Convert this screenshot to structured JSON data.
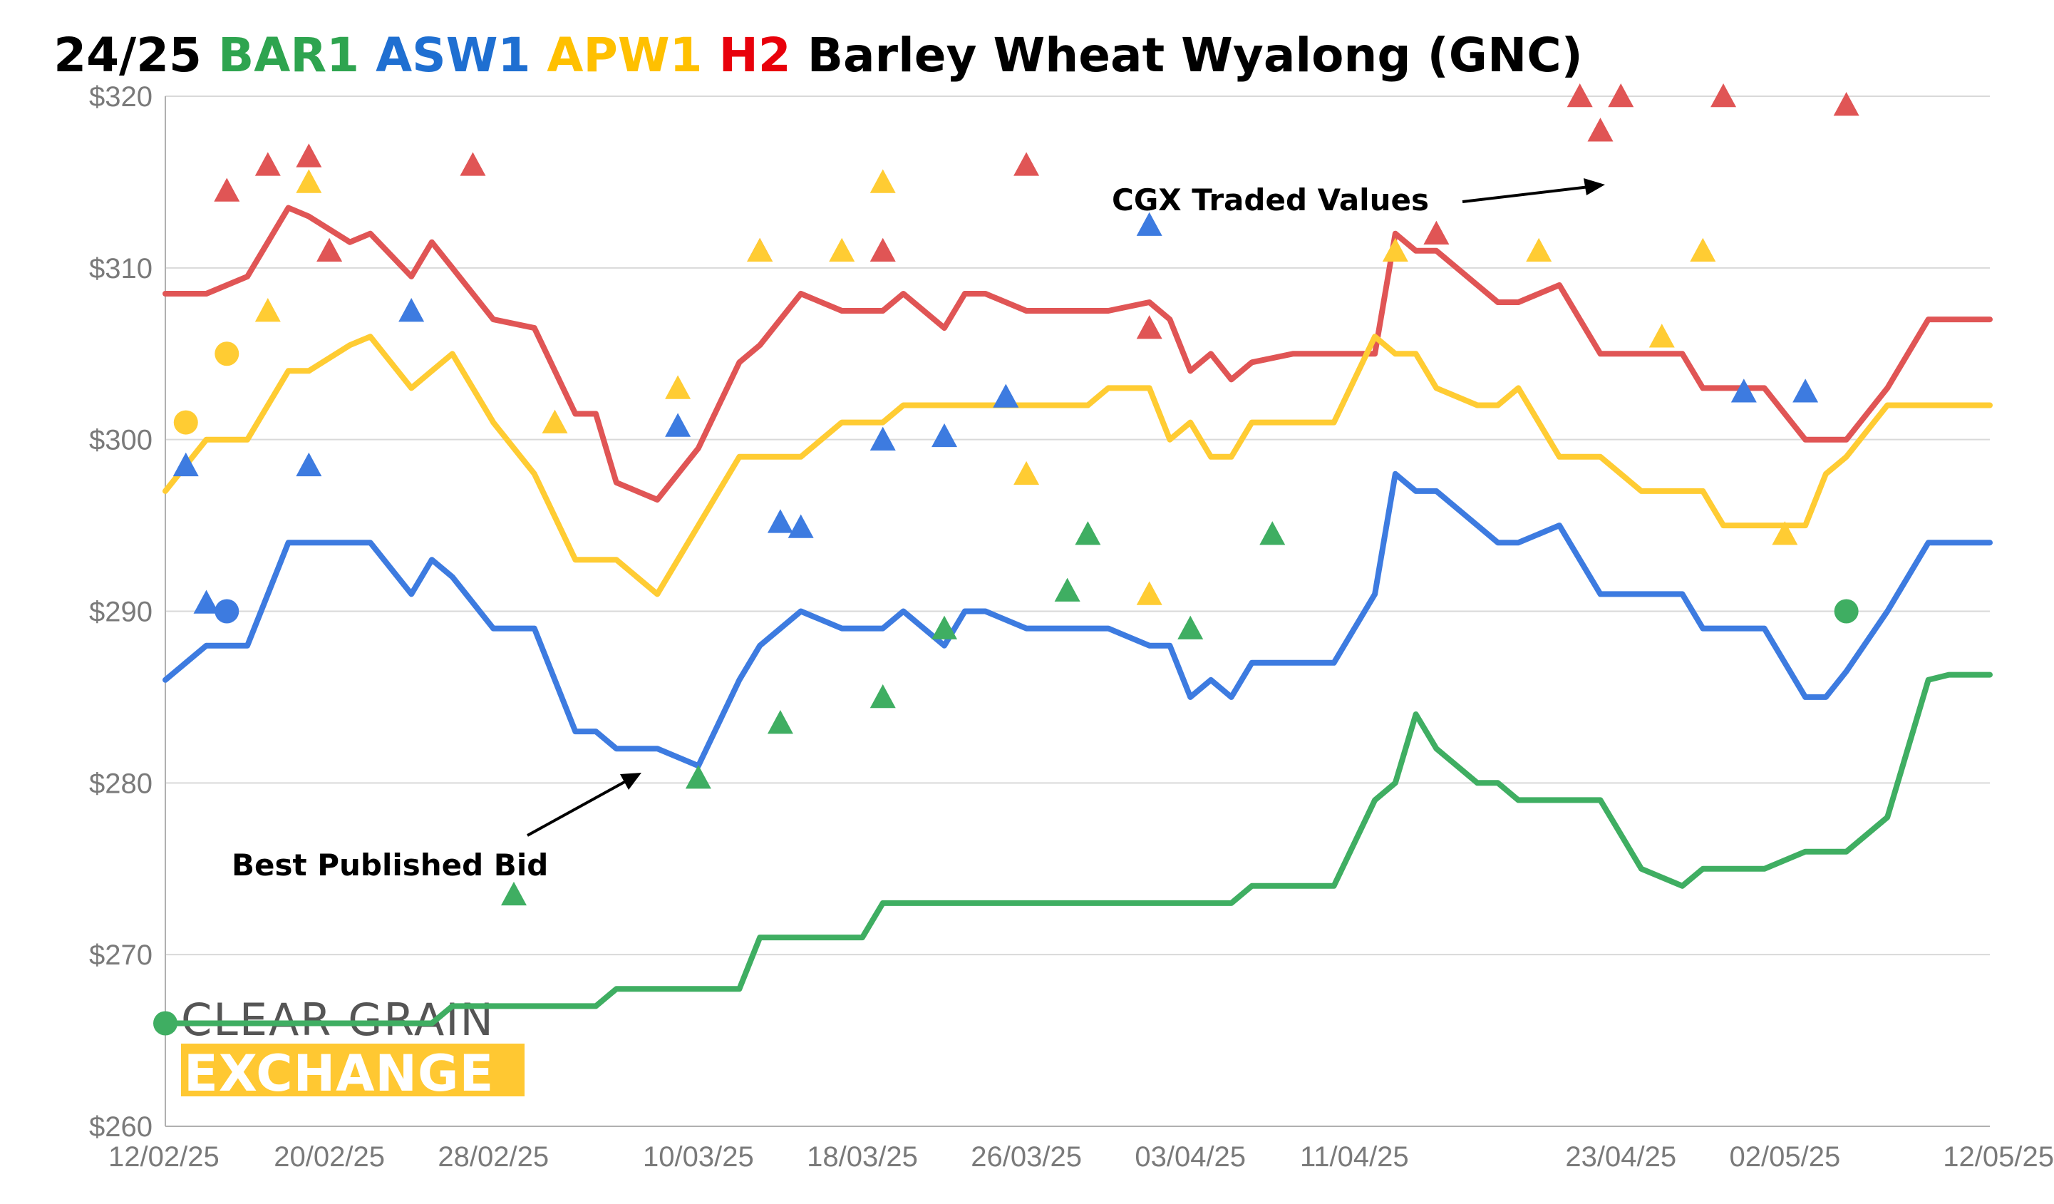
{
  "chart_data": {
    "type": "line",
    "title": {
      "parts": [
        {
          "text": "24/25 ",
          "color": "#000000"
        },
        {
          "text": "BAR1 ",
          "color": "#2ea44f"
        },
        {
          "text": "ASW1 ",
          "color": "#1f6fd1"
        },
        {
          "text": "APW1 ",
          "color": "#ffc000"
        },
        {
          "text": "H2 ",
          "color": "#e8000b"
        },
        {
          "text": "Barley Wheat Wyalong (GNC)",
          "color": "#000000"
        }
      ]
    },
    "xlabel": "",
    "ylabel": "",
    "ylim": [
      260,
      320
    ],
    "yticks": [
      260,
      270,
      280,
      290,
      300,
      310,
      320
    ],
    "ytick_labels": [
      "$260",
      "$270",
      "$280",
      "$290",
      "$300",
      "$310",
      "$320"
    ],
    "xlim": [
      0,
      89
    ],
    "xticks": [
      0,
      8,
      16,
      26,
      34,
      42,
      50,
      58,
      71,
      79,
      89
    ],
    "xtick_labels": [
      "12/02/25",
      "20/02/25",
      "28/02/25",
      "10/03/25",
      "18/03/25",
      "26/03/25",
      "03/04/25",
      "11/04/25",
      "23/04/25",
      "02/05/25",
      "12/05/25"
    ],
    "grid": "horizontal",
    "x_index_note": "x values are days since 12/02/25",
    "series": [
      {
        "name": "H2",
        "color": "#e05555",
        "x": [
          0,
          2,
          4,
          6,
          7,
          9,
          10,
          12,
          13,
          14,
          16,
          18,
          20,
          21,
          22,
          24,
          26,
          28,
          29,
          31,
          33,
          34,
          35,
          36,
          38,
          39,
          40,
          42,
          44,
          45,
          46,
          48,
          49,
          50,
          51,
          52,
          53,
          55,
          57,
          59,
          60,
          61,
          62,
          64,
          65,
          66,
          68,
          69,
          70,
          72,
          74,
          75,
          76,
          78,
          80,
          81,
          82,
          84,
          86,
          87,
          89
        ],
        "values": [
          308.5,
          308.5,
          309.5,
          313.5,
          313,
          311.5,
          312,
          309.5,
          311.5,
          310,
          307,
          306.5,
          301.5,
          301.5,
          297.5,
          296.5,
          299.5,
          304.5,
          305.5,
          308.5,
          307.5,
          307.5,
          307.5,
          308.5,
          306.5,
          308.5,
          308.5,
          307.5,
          307.5,
          307.5,
          307.5,
          308,
          307,
          304,
          305,
          303.5,
          304.5,
          305,
          305,
          305,
          312,
          311,
          311,
          309,
          308,
          308,
          309,
          307,
          305,
          305,
          305,
          303,
          303,
          303,
          300,
          300,
          300,
          303,
          307,
          307,
          307
        ]
      },
      {
        "name": "APW1",
        "color": "#ffcc33",
        "x": [
          0,
          2,
          4,
          6,
          7,
          9,
          10,
          12,
          13,
          14,
          16,
          18,
          20,
          21,
          22,
          24,
          26,
          28,
          29,
          31,
          33,
          34,
          35,
          36,
          38,
          39,
          40,
          42,
          44,
          45,
          46,
          48,
          49,
          50,
          51,
          52,
          53,
          55,
          57,
          59,
          60,
          61,
          62,
          64,
          65,
          66,
          68,
          69,
          70,
          72,
          74,
          75,
          76,
          78,
          80,
          81,
          82,
          84,
          86,
          87,
          89
        ],
        "values": [
          297,
          300,
          300,
          304,
          304,
          305.5,
          306,
          303,
          304,
          305,
          301,
          298,
          293,
          293,
          293,
          291,
          295,
          299,
          299,
          299,
          301,
          301,
          301,
          302,
          302,
          302,
          302,
          302,
          302,
          302,
          303,
          303,
          300,
          301,
          299,
          299,
          301,
          301,
          301,
          306,
          305,
          305,
          303,
          302,
          302,
          303,
          299,
          299,
          299,
          297,
          297,
          297,
          295,
          295,
          295,
          298,
          299,
          302,
          302,
          302,
          302
        ]
      },
      {
        "name": "ASW1",
        "color": "#3d7be0",
        "x": [
          0,
          2,
          4,
          6,
          7,
          9,
          10,
          12,
          13,
          14,
          16,
          18,
          20,
          21,
          22,
          24,
          26,
          28,
          29,
          31,
          33,
          34,
          35,
          36,
          38,
          39,
          40,
          42,
          44,
          45,
          46,
          48,
          49,
          50,
          51,
          52,
          53,
          55,
          57,
          59,
          60,
          61,
          62,
          64,
          65,
          66,
          68,
          69,
          70,
          72,
          74,
          75,
          76,
          78,
          80,
          81,
          82,
          84,
          86,
          87,
          89
        ],
        "values": [
          286,
          288,
          288,
          294,
          294,
          294,
          294,
          291,
          293,
          292,
          289,
          289,
          283,
          283,
          282,
          282,
          281,
          286,
          288,
          290,
          289,
          289,
          289,
          290,
          288,
          290,
          290,
          289,
          289,
          289,
          289,
          288,
          288,
          285,
          286,
          285,
          287,
          287,
          287,
          291,
          298,
          297,
          297,
          295,
          294,
          294,
          295,
          293,
          291,
          291,
          291,
          289,
          289,
          289,
          285,
          285,
          286.5,
          290,
          294,
          294,
          294
        ]
      },
      {
        "name": "BAR1",
        "color": "#3fae62",
        "x": [
          0,
          2,
          4,
          6,
          7,
          9,
          10,
          12,
          13,
          14,
          16,
          18,
          20,
          21,
          22,
          24,
          26,
          28,
          29,
          31,
          33,
          34,
          35,
          36,
          38,
          39,
          40,
          42,
          44,
          45,
          46,
          48,
          49,
          50,
          51,
          52,
          53,
          55,
          57,
          59,
          60,
          61,
          62,
          64,
          65,
          66,
          68,
          69,
          70,
          72,
          74,
          75,
          76,
          78,
          80,
          81,
          82,
          84,
          86,
          87,
          89
        ],
        "values": [
          266,
          266,
          266,
          266,
          266,
          266,
          266,
          266,
          266,
          267,
          267,
          267,
          267,
          267,
          268,
          268,
          268,
          268,
          271,
          271,
          271,
          271,
          273,
          273,
          273,
          273,
          273,
          273,
          273,
          273,
          273,
          273,
          273,
          273,
          273,
          273,
          274,
          274,
          274,
          279,
          280,
          284,
          282,
          280,
          280,
          279,
          279,
          279,
          279,
          275,
          274,
          275,
          275,
          275,
          276,
          276,
          276,
          278,
          286,
          286.3,
          286.3
        ]
      }
    ],
    "traded_values": {
      "label": "CGX Traded Values",
      "series": [
        {
          "name": "H2",
          "color": "#e05555",
          "marker": "triangle",
          "x": [
            3,
            5,
            7,
            8,
            15,
            29,
            35,
            42,
            48,
            62,
            69,
            70,
            71,
            76,
            82
          ],
          "values": [
            314.5,
            316,
            316.5,
            311,
            316,
            311,
            311,
            316,
            306.5,
            312,
            320,
            318,
            320,
            320,
            319.5
          ]
        },
        {
          "name": "APW1",
          "color": "#ffcc33",
          "marker": "triangle",
          "x": [
            5,
            7,
            19,
            25,
            29,
            33,
            35,
            42,
            48,
            60,
            67,
            73,
            75,
            79
          ],
          "values": [
            307.5,
            315,
            301,
            303,
            311,
            311,
            315,
            298,
            291,
            311,
            311,
            306,
            311,
            294.5
          ]
        },
        {
          "name": "ASW1",
          "color": "#3d7be0",
          "marker": "triangle",
          "x": [
            1,
            2,
            7,
            12,
            25,
            30,
            31,
            35,
            38,
            41,
            48,
            77,
            80
          ],
          "values": [
            298.5,
            290.5,
            298.5,
            307.5,
            300.8,
            295.2,
            294.9,
            300,
            300.2,
            302.5,
            312.5,
            302.8,
            302.8
          ]
        },
        {
          "name": "BAR1",
          "color": "#3fae62",
          "marker": "triangle",
          "x": [
            17,
            26,
            30,
            35,
            38,
            44,
            45,
            50,
            54
          ],
          "values": [
            273.5,
            280.3,
            283.5,
            285,
            289,
            291.2,
            294.5,
            289,
            294.5
          ]
        }
      ]
    },
    "circle_points": [
      {
        "series": "APW1",
        "color": "#ffcc33",
        "x": 1,
        "value": 301
      },
      {
        "series": "APW1",
        "color": "#ffcc33",
        "x": 3,
        "value": 305
      },
      {
        "series": "ASW1",
        "color": "#3d7be0",
        "x": 3,
        "value": 290
      },
      {
        "series": "BAR1",
        "color": "#3fae62",
        "x": 0,
        "value": 266
      },
      {
        "series": "BAR1",
        "color": "#3fae62",
        "x": 82,
        "value": 290
      }
    ],
    "annotations": [
      {
        "text": "CGX Traded Values",
        "points_to": "traded markers"
      },
      {
        "text": "Best Published Bid",
        "points_to": "ASW1 line"
      }
    ],
    "logo": {
      "line1": "CLEAR GRAIN",
      "line2": "EXCHANGE",
      "accent": "#ffc832"
    }
  }
}
